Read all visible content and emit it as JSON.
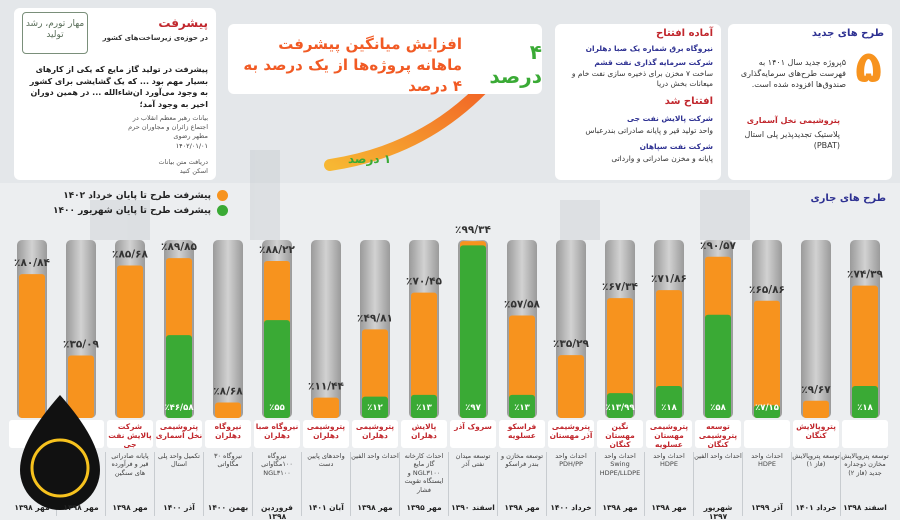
{
  "brand": {
    "logo_text": "مهار تورم، رشد تولید"
  },
  "quote": {
    "title": "پیشرفت",
    "subtitle": "در حوزه‌ی زیرساخت‌های کشور",
    "text": "پیشرفت در تولید گاز مایع که یکی از کارهای بسیار مهم بود ... که یک گشایشی برای کشور به وجود می‌آورد ان‌شاءالله ... در همین دوران اخیر به وجود آمد؛",
    "source": "بیانات رهبر معظم انقلاب در اجتماع زائران و مجاوران حرم مطهر رضوی",
    "date": "۱۴۰۲/۰۱/۰۱",
    "qr_caption": "دریافت متن بیانات اسکن کنید"
  },
  "headline": {
    "text": "افزایش میانگین پیشرفت ماهانه پروژه‌ها از یک درصد به ۴ درصد",
    "to": "۴ درصد",
    "from": "۱ درصد"
  },
  "status": {
    "ready_title": "آماده افتتاح",
    "ready_items": [
      {
        "title": "نیروگاه برق شماره یک صبا دهلران"
      },
      {
        "title": "شرکت سرمایه گذاری نفت قشم",
        "desc": "ساخت ۷ مخزن برای ذخیره سازی نفت خام و میعانات بخش دریا"
      }
    ],
    "opened_title": "افتتاح شد",
    "opened_items": [
      {
        "title": "شرکت پالایش نفت جی",
        "desc": "واحد تولید قیر و پایانه صادراتی بندرعباس"
      },
      {
        "title": "شرکت نفت سپاهان",
        "desc": "پایانه و مخزن صادراتی و وارداتی"
      }
    ]
  },
  "new_projects": {
    "title": "طرح های جدید",
    "count": "۵",
    "text": "۵پروژه جدید سال ۱۴۰۱ به فهرست طرح‌های سرمایه‌گذاری صندوق‌ها افزوده شده است.",
    "location": "ماهشهر",
    "company": "پتروشیمی نخل آسماری",
    "product": "پلاستیک تجدیدپذیر پلی استال (PBAT)"
  },
  "chart_data": {
    "type": "bar",
    "title": "طرح های جاری",
    "ylim": [
      0,
      100
    ],
    "categories": [
      null,
      "پتروپالایش کنگان",
      null,
      "توسعه پتروشیمی کنگان",
      "پتروشیمی مهستان عسلویه",
      "نگین مهستان کنگان",
      "پتروشیمی آذر مهستان",
      "فراسکو عسلویه",
      "سروک آذر",
      "پالایش دهلران",
      "پتروشیمی دهلران",
      "پتروشیمی دهلران",
      "نیروگاه صبا دهلران",
      "نیروگاه دهلران",
      "پتروشیمی نخل آسماری",
      "شرکت پالایش نفت جی",
      null,
      null
    ],
    "descriptions": [
      "توسعه پتروپالایش مخازن ذوجداره جدید (فاز ۲)",
      "توسعه پتروپالایش (فاز ۱)",
      "احداث واحد HDPE",
      "احداث واحد الفین",
      "احداث واحد HDPE",
      "احداث واحد Swing HDPE/LLDPE",
      "احداث واحد PDH/PP",
      "توسعه مخازن و بندر فراسکو",
      "توسعه میدان نفتی آذر",
      "احداث کارخانه گاز مایع NGL۳۱۰۰ و ایستگاه تقویت فشار",
      "احداث واحد الفین",
      "واحدهای پایین دست",
      "نیروگاه ۱۰۰مگاواتی NGL۳۱۰۰",
      "نیروگاه ۳۰ مگاواتی",
      "تکمیل واحد پلی استال",
      "پایانه صادراتی قیر و فرآورده های سنگین",
      null,
      null
    ],
    "dates": [
      "اسفند ۱۳۹۸",
      "خرداد ۱۴۰۱",
      "آذر ۱۳۹۹",
      "شهریور ۱۳۹۷",
      "مهر ۱۳۹۸",
      "مهر ۱۳۹۸",
      "خرداد ۱۴۰۰",
      "مهر ۱۳۹۸",
      "اسفند ۱۳۹۰",
      "مهر ۱۳۹۵",
      "مهر ۱۳۹۸",
      "آبان ۱۴۰۱",
      "فروردین ۱۳۹۸",
      "بهمن ۱۴۰۰",
      "آذر ۱۴۰۰",
      "مهر ۱۳۹۸",
      "مهر ۱۳۹۸",
      "مهر ۱۳۹۸"
    ],
    "series": [
      {
        "name": "پیشرفت طرح تا پایان خرداد ۱۴۰۲",
        "color": "#f7931e",
        "values": [
          74.39,
          9.67,
          65.86,
          90.57,
          71.86,
          67.34,
          35.29,
          57.58,
          99.34,
          70.45,
          49.81,
          11.44,
          88.22,
          8.68,
          89.85,
          85.68,
          35.09,
          80.84
        ],
        "value_labels": [
          "٪۷۴/۳۹",
          "٪۹/۶۷",
          "٪۶۵/۸۶",
          "٪۹۰/۵۷",
          "٪۷۱/۸۶",
          "٪۶۷/۳۴",
          "٪۳۵/۲۹",
          "٪۵۷/۵۸",
          "٪۹۹/۳۴",
          "٪۷۰/۴۵",
          "٪۴۹/۸۱",
          "٪۱۱/۴۴",
          "٪۸۸/۲۲",
          "٪۸/۶۸",
          "٪۸۹/۸۵",
          "٪۸۵/۶۸",
          "٪۳۵/۰۹",
          "٪۸۰/۸۴"
        ]
      },
      {
        "name": "پیشرفت طرح تا پایان شهریور ۱۴۰۰",
        "color": "#3aaa35",
        "values": [
          18,
          null,
          7.15,
          58,
          18,
          13.99,
          null,
          13,
          97,
          13,
          12,
          null,
          55,
          null,
          46.58,
          null,
          null,
          null
        ],
        "value_labels": [
          "٪۱۸",
          null,
          "٪۷/۱۵",
          "٪۵۸",
          "٪۱۸",
          "٪۱۳/۹۹",
          null,
          "٪۱۳",
          "٪۹۷",
          "٪۱۳",
          "٪۱۲",
          null,
          "٪۵۵",
          null,
          "٪۴۶/۵۸",
          null,
          null,
          null
        ]
      }
    ]
  }
}
